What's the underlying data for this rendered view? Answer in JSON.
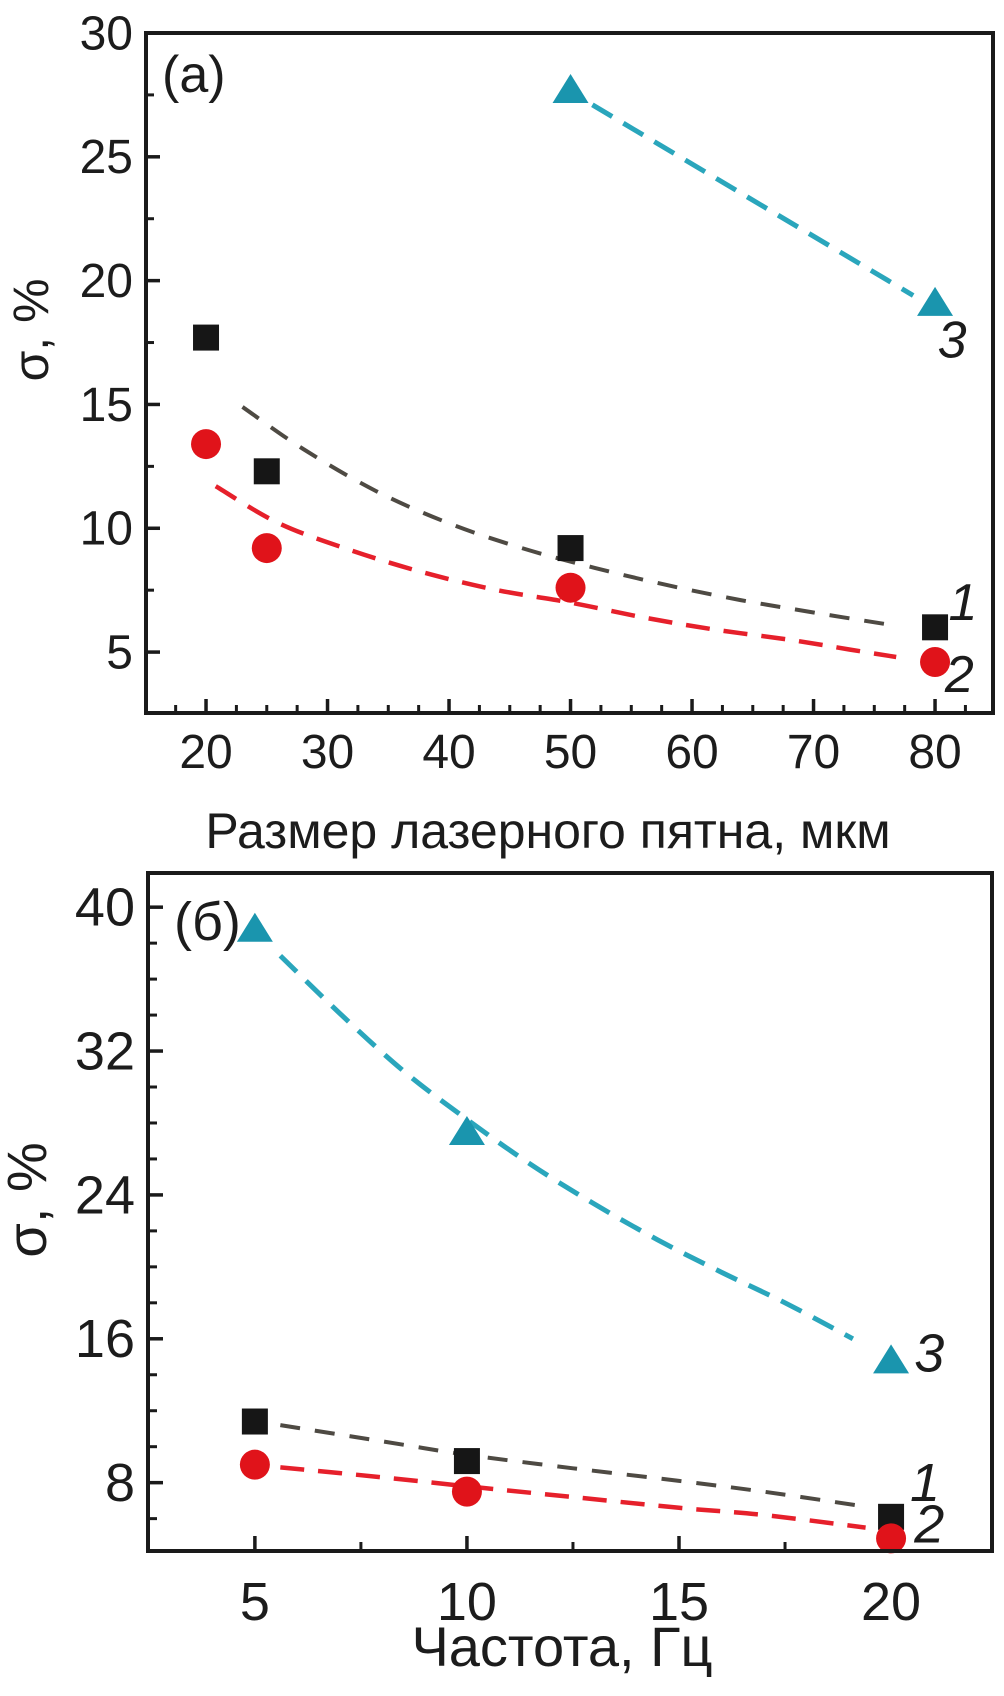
{
  "figure": {
    "background": "#ffffff",
    "frame_color": "#1a1a1a",
    "text_color": "#1c1c1c"
  },
  "chart_data": [
    {
      "type": "scatter",
      "panel_label": "(a)",
      "xlabel": "Размер лазерного пятна, мкм",
      "ylabel": "σ, %",
      "xlim": [
        15.06,
        84.77
      ],
      "ylim": [
        2.54,
        30.0
      ],
      "grid": false,
      "x_major_ticks": [
        20,
        30,
        40,
        50,
        60,
        70,
        80
      ],
      "x_minor_ticks": [
        17.5,
        22.5,
        25,
        27.5,
        32.5,
        35,
        37.5,
        42.5,
        45,
        47.5,
        52.5,
        55,
        57.5,
        62.5,
        65,
        67.5,
        72.5,
        75,
        77.5,
        82.5
      ],
      "y_major_ticks": [
        5,
        10,
        15,
        20,
        25,
        30
      ],
      "y_minor_ticks": [
        7.5,
        12.5,
        17.5,
        22.5,
        27.5
      ],
      "series": [
        {
          "name": "1",
          "marker": "square",
          "marker_color": "#161616",
          "line_color": "#4e4a43",
          "line_style": "dashed",
          "points": [
            [
              20,
              17.7
            ],
            [
              25,
              12.3
            ],
            [
              50,
              9.2
            ],
            [
              80,
              6.0
            ]
          ],
          "trend": [
            [
              23,
              14.9
            ],
            [
              28,
              13.2
            ],
            [
              34,
              11.5
            ],
            [
              40,
              10.2
            ],
            [
              46,
              9.2
            ],
            [
              52,
              8.4
            ],
            [
              58,
              7.7
            ],
            [
              64,
              7.1
            ],
            [
              70,
              6.6
            ],
            [
              76.3,
              6.1
            ]
          ],
          "label_pos": [
            82.3,
            7.0
          ]
        },
        {
          "name": "2",
          "marker": "circle",
          "marker_color": "#e0131a",
          "line_color": "#e6202b",
          "line_style": "dashed",
          "points": [
            [
              20,
              13.4
            ],
            [
              25,
              9.2
            ],
            [
              50,
              7.6
            ],
            [
              80,
              4.6
            ]
          ],
          "trend": [
            [
              20.8,
              11.7
            ],
            [
              26,
              10.2
            ],
            [
              32,
              9.1
            ],
            [
              38,
              8.2
            ],
            [
              44,
              7.5
            ],
            [
              50,
              7.0
            ],
            [
              56,
              6.4
            ],
            [
              62,
              5.9
            ],
            [
              68,
              5.5
            ],
            [
              73,
              5.1
            ],
            [
              76.8,
              4.8
            ]
          ],
          "label_pos": [
            82.0,
            4.1
          ]
        },
        {
          "name": "3",
          "marker": "triangle",
          "marker_color": "#1a95ae",
          "line_color": "#2aa6bc",
          "line_style": "dashed",
          "points": [
            [
              50,
              27.7
            ],
            [
              80,
              19.1
            ]
          ],
          "trend": [
            [
              51.8,
              27.1
            ],
            [
              78.2,
              19.4
            ]
          ],
          "label_pos": [
            81.4,
            17.6
          ]
        }
      ]
    },
    {
      "type": "scatter",
      "panel_label": "(б)",
      "xlabel": "Частота, Гц",
      "ylabel": "σ, %",
      "xlim": [
        2.48,
        22.38
      ],
      "ylim": [
        4.2,
        41.9
      ],
      "grid": false,
      "x_major_ticks": [
        5,
        10,
        15,
        20
      ],
      "x_minor_ticks": [
        7.5,
        12.5,
        17.5
      ],
      "y_major_ticks": [
        8,
        16,
        24,
        32,
        40
      ],
      "y_minor_ticks": [
        6,
        10,
        12,
        14,
        18,
        20,
        22,
        26,
        28,
        30,
        34,
        36,
        38
      ],
      "series": [
        {
          "name": "1",
          "marker": "square",
          "marker_color": "#161616",
          "line_color": "#4e4a43",
          "line_style": "dashed",
          "points": [
            [
              5,
              11.4
            ],
            [
              10,
              9.2
            ],
            [
              20,
              6.1
            ]
          ],
          "trend": [
            [
              5.6,
              11.2
            ],
            [
              8,
              10.3
            ],
            [
              10,
              9.55
            ],
            [
              12.5,
              8.8
            ],
            [
              15,
              8.1
            ],
            [
              17,
              7.5
            ],
            [
              19.3,
              6.7
            ]
          ],
          "label_pos": [
            20.8,
            8.0
          ]
        },
        {
          "name": "2",
          "marker": "circle",
          "marker_color": "#e0131a",
          "line_color": "#e6202b",
          "line_style": "dashed",
          "points": [
            [
              5,
              9.0
            ],
            [
              10,
              7.5
            ],
            [
              20,
              4.9
            ]
          ],
          "trend": [
            [
              5.6,
              8.85
            ],
            [
              8,
              8.3
            ],
            [
              10,
              7.8
            ],
            [
              12.5,
              7.2
            ],
            [
              15,
              6.6
            ],
            [
              17,
              6.2
            ],
            [
              19.4,
              5.5
            ]
          ],
          "label_pos": [
            20.9,
            5.7
          ]
        },
        {
          "name": "3",
          "marker": "triangle",
          "marker_color": "#1a95ae",
          "line_color": "#2aa6bc",
          "line_style": "dashed",
          "points": [
            [
              5,
              38.8
            ],
            [
              10,
              27.5
            ],
            [
              20,
              14.8
            ]
          ],
          "trend": [
            [
              5.6,
              37.3
            ],
            [
              7,
              34.1
            ],
            [
              8.5,
              30.9
            ],
            [
              10,
              28.2
            ],
            [
              11.5,
              25.7
            ],
            [
              13,
              23.5
            ],
            [
              14.5,
              21.5
            ],
            [
              16,
              19.7
            ],
            [
              17.5,
              18.0
            ],
            [
              19.1,
              16.0
            ]
          ],
          "label_pos": [
            20.9,
            15.2
          ]
        }
      ]
    }
  ]
}
